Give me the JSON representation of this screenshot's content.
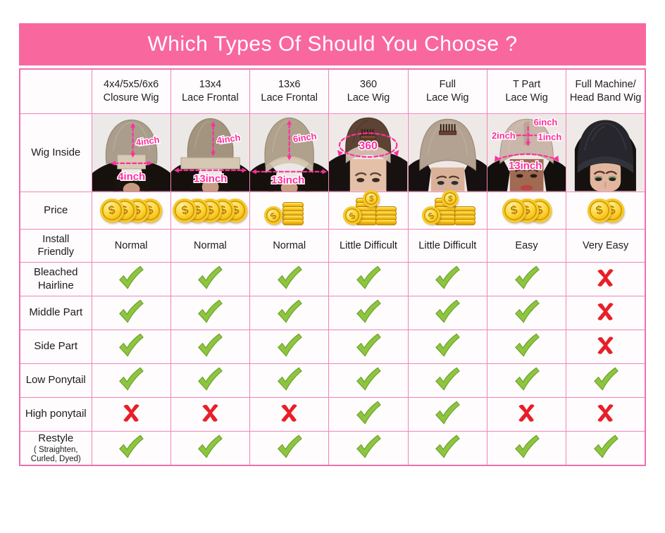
{
  "title": "Which Types Of Should You Choose ?",
  "colors": {
    "banner_pink": "#f9679f",
    "cell_pink": "#fbe4f0",
    "border_pink": "#f06fb0",
    "annotation_pink": "#ff2f9e",
    "check_green": "#8cc63e",
    "cross_red": "#e81f28",
    "coin_gold": "#f5c518"
  },
  "icons": {
    "check": "green-check",
    "cross": "red-cross",
    "coin": "gold-coin"
  },
  "columns": [
    {
      "line1": "4x4/5x5/6x6",
      "line2": "Closure Wig"
    },
    {
      "line1": "13x4",
      "line2": "Lace Frontal"
    },
    {
      "line1": "13x6",
      "line2": "Lace Frontal"
    },
    {
      "line1": "360",
      "line2": "Lace Wig"
    },
    {
      "line1": "Full",
      "line2": "Lace Wig"
    },
    {
      "line1": "T Part",
      "line2": "Lace Wig"
    },
    {
      "line1": "Full Machine/",
      "line2": "Head Band Wig"
    }
  ],
  "row_labels": {
    "wig_inside": "Wig Inside",
    "price": "Price"
  },
  "wig_annotations": {
    "closure": {
      "vertical": "4inch",
      "horizontal": "4inch"
    },
    "frontal13x4": {
      "vertical": "4inch",
      "horizontal": "13inch"
    },
    "frontal13x6": {
      "vertical": "6inch",
      "horizontal": "13inch"
    },
    "wig360": {
      "circumference": "360"
    },
    "tpart": {
      "top": "6inch",
      "left": "2inch",
      "right": "1inch",
      "bottom": "13inch"
    }
  },
  "price_row": [
    {
      "coins": 4,
      "arrangement": "row"
    },
    {
      "coins": 5,
      "arrangement": "row"
    },
    {
      "coins": 7,
      "arrangement": "stack"
    },
    {
      "coins": 12,
      "arrangement": "stack"
    },
    {
      "coins": 12,
      "arrangement": "stack"
    },
    {
      "coins": 3,
      "arrangement": "row"
    },
    {
      "coins": 2,
      "arrangement": "row"
    }
  ],
  "install_row": {
    "label_lines": [
      "Install",
      "Friendly"
    ],
    "values": [
      "Normal",
      "Normal",
      "Normal",
      "Little Difficult",
      "Little Difficult",
      "Easy",
      "Very Easy"
    ]
  },
  "feature_rows": [
    {
      "label_lines": [
        "Bleached",
        "Hairline"
      ],
      "values": [
        "check",
        "check",
        "check",
        "check",
        "check",
        "check",
        "cross"
      ]
    },
    {
      "label_lines": [
        "Middle Part"
      ],
      "values": [
        "check",
        "check",
        "check",
        "check",
        "check",
        "check",
        "cross"
      ]
    },
    {
      "label_lines": [
        "Side Part"
      ],
      "values": [
        "check",
        "check",
        "check",
        "check",
        "check",
        "check",
        "cross"
      ]
    },
    {
      "label_lines": [
        "Low Ponytail"
      ],
      "values": [
        "check",
        "check",
        "check",
        "check",
        "check",
        "check",
        "check"
      ]
    },
    {
      "label_lines": [
        "High ponytail"
      ],
      "values": [
        "cross",
        "cross",
        "cross",
        "check",
        "check",
        "cross",
        "cross"
      ]
    },
    {
      "label_lines": [
        "Restyle",
        "( Straighten,",
        "Curled, Dyed)"
      ],
      "values": [
        "check",
        "check",
        "check",
        "check",
        "check",
        "check",
        "check"
      ]
    }
  ],
  "chart_data": {
    "type": "table",
    "title": "Which Types Of Should You Choose ?",
    "columns": [
      "4x4/5x5/6x6 Closure Wig",
      "13x4 Lace Frontal",
      "13x6 Lace Frontal",
      "360 Lace Wig",
      "Full Lace Wig",
      "T Part Lace Wig",
      "Full Machine/Head Band Wig"
    ],
    "rows": [
      {
        "label": "Wig Inside",
        "values": [
          "4inch x 4inch closure",
          "13inch x 4inch frontal",
          "13inch x 6inch frontal",
          "360 lace circle",
          "full lace cap with comb",
          "13inch T part: 6inch, 2inch, 1inch",
          "headband wig, no lace"
        ]
      },
      {
        "label": "Price",
        "values": [
          "4 coins",
          "5 coins",
          "coin stack",
          "large coin stack",
          "large coin stack",
          "3 coins",
          "2 coins"
        ]
      },
      {
        "label": "Install Friendly",
        "values": [
          "Normal",
          "Normal",
          "Normal",
          "Little Difficult",
          "Little Difficult",
          "Easy",
          "Very Easy"
        ]
      },
      {
        "label": "Bleached Hairline",
        "values": [
          "yes",
          "yes",
          "yes",
          "yes",
          "yes",
          "yes",
          "no"
        ]
      },
      {
        "label": "Middle Part",
        "values": [
          "yes",
          "yes",
          "yes",
          "yes",
          "yes",
          "yes",
          "no"
        ]
      },
      {
        "label": "Side Part",
        "values": [
          "yes",
          "yes",
          "yes",
          "yes",
          "yes",
          "yes",
          "no"
        ]
      },
      {
        "label": "Low Ponytail",
        "values": [
          "yes",
          "yes",
          "yes",
          "yes",
          "yes",
          "yes",
          "yes"
        ]
      },
      {
        "label": "High ponytail",
        "values": [
          "no",
          "no",
          "no",
          "yes",
          "yes",
          "no",
          "no"
        ]
      },
      {
        "label": "Restyle ( Straighten, Curled, Dyed)",
        "values": [
          "yes",
          "yes",
          "yes",
          "yes",
          "yes",
          "yes",
          "yes"
        ]
      }
    ]
  }
}
